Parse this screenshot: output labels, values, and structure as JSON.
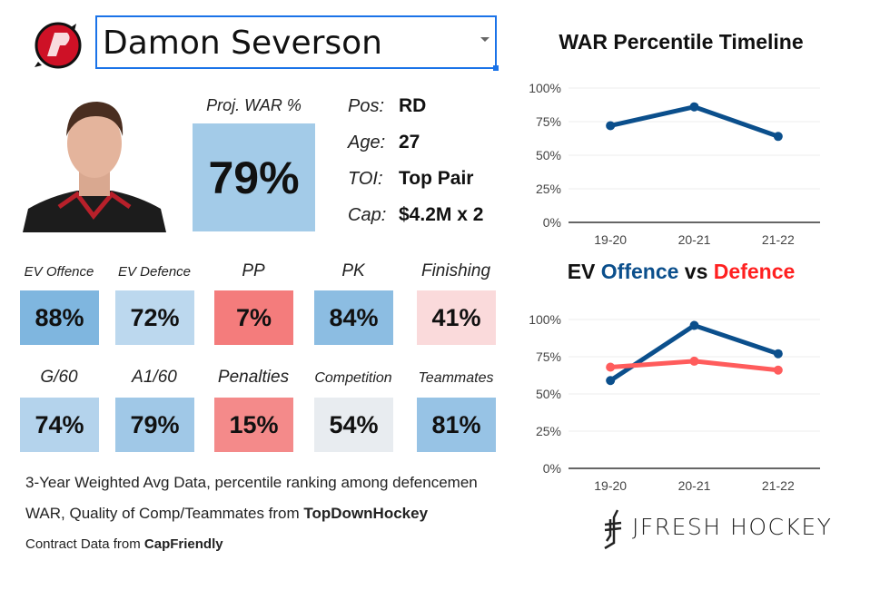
{
  "player": {
    "name": "Damon Severson"
  },
  "proj_war": {
    "label": "Proj. WAR %",
    "value": "79%",
    "color": "#a3cbe8"
  },
  "info": [
    {
      "key": "Pos:",
      "value": "RD"
    },
    {
      "key": "Age:",
      "value": "27"
    },
    {
      "key": "TOI:",
      "value": "Top Pair"
    },
    {
      "key": "Cap:",
      "value": "$4.2M x 2"
    }
  ],
  "tiles": [
    {
      "label": "EV Offence",
      "value": "88%",
      "color": "#7fb6df"
    },
    {
      "label": "EV Defence",
      "value": "72%",
      "color": "#bcd8ee"
    },
    {
      "label": "PP",
      "value": "7%",
      "color": "#f47c7c"
    },
    {
      "label": "PK",
      "value": "84%",
      "color": "#8cbde2"
    },
    {
      "label": "Finishing",
      "value": "41%",
      "color": "#fadadb"
    },
    {
      "label": "G/60",
      "value": "74%",
      "color": "#b4d3ec"
    },
    {
      "label": "A1/60",
      "value": "79%",
      "color": "#a0c8e7"
    },
    {
      "label": "Penalties",
      "value": "15%",
      "color": "#f48a8a"
    },
    {
      "label": "Competition",
      "value": "54%",
      "color": "#e8ecf0"
    },
    {
      "label": "Teammates",
      "value": "81%",
      "color": "#97c3e5"
    }
  ],
  "footer": {
    "line1": "3-Year Weighted Avg Data, percentile ranking among defencemen",
    "line2_prefix": "WAR, Quality of Comp/Teammates from ",
    "line2_source": "TopDownHockey",
    "line3_prefix": "Contract Data from ",
    "line3_source": "CapFriendly"
  },
  "branding": {
    "text": "JFRESH HOCKEY"
  },
  "chart_data": [
    {
      "type": "line",
      "title": "WAR Percentile Timeline",
      "categories": [
        "19-20",
        "20-21",
        "21-22"
      ],
      "series": [
        {
          "values": [
            72,
            86,
            64
          ],
          "color": "#0b4f8c"
        }
      ],
      "ylim": [
        0,
        100
      ],
      "yticks": [
        "0%",
        "25%",
        "50%",
        "75%",
        "100%"
      ],
      "grid": true
    },
    {
      "type": "line",
      "title_parts": [
        "EV ",
        "Offence",
        " vs ",
        "Defence"
      ],
      "categories": [
        "19-20",
        "20-21",
        "21-22"
      ],
      "series": [
        {
          "name": "Offence",
          "values": [
            59,
            96,
            77
          ],
          "color": "#0b4f8c"
        },
        {
          "name": "Defence",
          "values": [
            68,
            72,
            66
          ],
          "color": "#ff5c5c"
        }
      ],
      "ylim": [
        0,
        100
      ],
      "yticks": [
        "0%",
        "25%",
        "50%",
        "75%",
        "100%"
      ],
      "grid": true
    }
  ]
}
